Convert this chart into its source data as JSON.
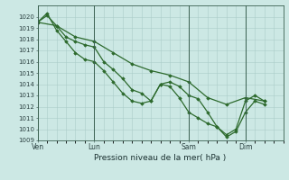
{
  "background_color": "#cce8e4",
  "grid_color": "#aaccc8",
  "line_color": "#2d6a2d",
  "marker_color": "#2d6a2d",
  "xlabel": "Pression niveau de la mer( hPa )",
  "ylim": [
    1009,
    1021
  ],
  "yticks": [
    1009,
    1010,
    1011,
    1012,
    1013,
    1014,
    1015,
    1016,
    1017,
    1018,
    1019,
    1020
  ],
  "day_labels": [
    "Ven",
    "Lun",
    "Sam",
    "Dim"
  ],
  "day_positions": [
    0.0,
    3.0,
    8.0,
    11.0
  ],
  "xlim": [
    0,
    13
  ],
  "series1_x": [
    0.0,
    0.5,
    1.0,
    1.5,
    2.0,
    2.5,
    3.0,
    3.5,
    4.0,
    4.5,
    5.0,
    5.5,
    6.0,
    6.5,
    7.0,
    7.5,
    8.0,
    8.5,
    9.0,
    9.5,
    10.0,
    10.5,
    11.0,
    11.5,
    12.0
  ],
  "series1_y": [
    1019.5,
    1020.1,
    1019.2,
    1018.2,
    1017.8,
    1017.5,
    1017.3,
    1016.0,
    1015.3,
    1014.5,
    1013.5,
    1013.2,
    1012.5,
    1014.0,
    1014.2,
    1013.8,
    1013.0,
    1012.7,
    1011.5,
    1010.2,
    1009.5,
    1010.0,
    1012.5,
    1013.0,
    1012.5
  ],
  "series2_x": [
    0.0,
    0.5,
    1.0,
    1.5,
    2.0,
    2.5,
    3.0,
    3.5,
    4.0,
    4.5,
    5.0,
    5.5,
    6.0,
    6.5,
    7.0,
    7.5,
    8.0,
    8.5,
    9.0,
    9.5,
    10.0,
    10.5,
    11.0,
    11.5,
    12.0
  ],
  "series2_y": [
    1019.5,
    1020.3,
    1018.8,
    1017.8,
    1016.8,
    1016.2,
    1016.0,
    1015.2,
    1014.2,
    1013.2,
    1012.5,
    1012.3,
    1012.5,
    1014.0,
    1013.8,
    1012.8,
    1011.5,
    1011.0,
    1010.5,
    1010.2,
    1009.3,
    1009.8,
    1011.5,
    1012.5,
    1012.2
  ],
  "series3_x": [
    0.0,
    1.0,
    2.0,
    3.0,
    4.0,
    5.0,
    6.0,
    7.0,
    8.0,
    9.0,
    10.0,
    11.0,
    12.0
  ],
  "series3_y": [
    1019.5,
    1019.2,
    1018.2,
    1017.8,
    1016.8,
    1015.8,
    1015.2,
    1014.8,
    1014.2,
    1012.8,
    1012.2,
    1012.8,
    1012.5
  ],
  "xtick_positions": [
    0.0,
    3.0,
    8.0,
    11.0
  ],
  "figsize": [
    3.2,
    2.0
  ],
  "dpi": 100
}
